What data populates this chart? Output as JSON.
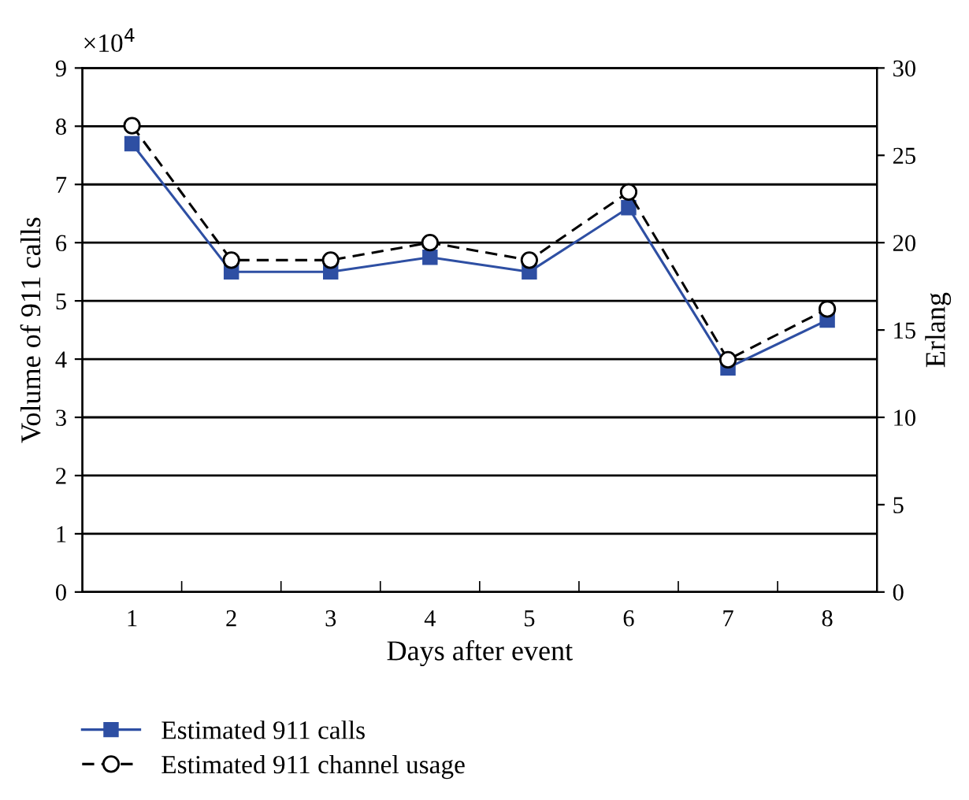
{
  "chart_data": {
    "type": "line",
    "xlabel": "Days after event",
    "ylabel": "Volume of 911 calls",
    "y2label": "Erlang",
    "categories": [
      "1",
      "2",
      "3",
      "4",
      "5",
      "6",
      "7",
      "8"
    ],
    "series": [
      {
        "name": "Estimated 911 calls",
        "color": "#2e4fa3",
        "marker": "square",
        "line_style": "solid",
        "values": [
          7.7,
          5.5,
          5.5,
          5.75,
          5.5,
          6.6,
          3.85,
          4.67
        ]
      },
      {
        "name": "Estimated 911 channel usage",
        "color": "#000000",
        "marker": "circle",
        "line_style": "dashed",
        "axis": "y2",
        "values": [
          26.7,
          19.0,
          19.0,
          20.0,
          19.0,
          22.9,
          13.3,
          16.2
        ]
      }
    ],
    "ylim": [
      0,
      9
    ],
    "yticks": [
      0,
      1,
      2,
      3,
      4,
      5,
      6,
      7,
      8,
      9
    ],
    "y2lim": [
      0,
      30
    ],
    "y2ticks": [
      0,
      5,
      10,
      15,
      20,
      25,
      30
    ],
    "annotations": [
      "×10$^{4}$"
    ],
    "grid": "y",
    "legend": "bottom"
  }
}
